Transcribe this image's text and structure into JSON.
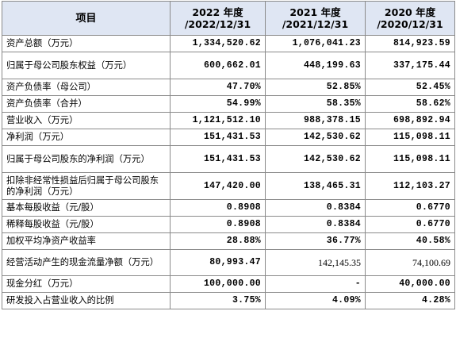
{
  "table": {
    "headers": [
      {
        "line1": "项目",
        "line2": ""
      },
      {
        "line1": "2022 年度",
        "line2": "/2022/12/31"
      },
      {
        "line1": "2021 年度",
        "line2": "/2021/12/31"
      },
      {
        "line1": "2020 年度",
        "line2": "/2020/12/31"
      }
    ],
    "rows": [
      {
        "label": "资产总额（万元）",
        "v2022": "1,334,520.62",
        "v2021": "1,076,041.23",
        "v2020": "814,923.59"
      },
      {
        "label": "归属于母公司股东权益（万元）",
        "v2022": "600,662.01",
        "v2021": "448,199.63",
        "v2020": "337,175.44"
      },
      {
        "label": "资产负债率（母公司）",
        "v2022": "47.70%",
        "v2021": "52.85%",
        "v2020": "52.45%"
      },
      {
        "label": "资产负债率（合并）",
        "v2022": "54.99%",
        "v2021": "58.35%",
        "v2020": "58.62%"
      },
      {
        "label": "营业收入（万元）",
        "v2022": "1,121,512.10",
        "v2021": "988,378.15",
        "v2020": "698,892.94"
      },
      {
        "label": "净利润（万元）",
        "v2022": "151,431.53",
        "v2021": "142,530.62",
        "v2020": "115,098.11"
      },
      {
        "label": "归属于母公司股东的净利润（万元）",
        "v2022": "151,431.53",
        "v2021": "142,530.62",
        "v2020": "115,098.11"
      },
      {
        "label": "扣除非经常性损益后归属于母公司股东的净利润（万元）",
        "v2022": "147,420.00",
        "v2021": "138,465.31",
        "v2020": "112,103.27"
      },
      {
        "label": "基本每股收益（元/股）",
        "v2022": "0.8908",
        "v2021": "0.8384",
        "v2020": "0.6770"
      },
      {
        "label": "稀释每股收益（元/股）",
        "v2022": "0.8908",
        "v2021": "0.8384",
        "v2020": "0.6770"
      },
      {
        "label": "加权平均净资产收益率",
        "v2022": "28.88%",
        "v2021": "36.77%",
        "v2020": "40.58%"
      },
      {
        "label": "经营活动产生的现金流量净额（万元）",
        "v2022": "80,993.47",
        "v2021": "142,145.35",
        "v2020": "74,100.69"
      },
      {
        "label": "现金分红（万元）",
        "v2022": "100,000.00",
        "v2021": "-",
        "v2020": "40,000.00"
      },
      {
        "label": "研发投入占营业收入的比例",
        "v2022": "3.75%",
        "v2021": "4.09%",
        "v2020": "4.28%"
      }
    ]
  }
}
